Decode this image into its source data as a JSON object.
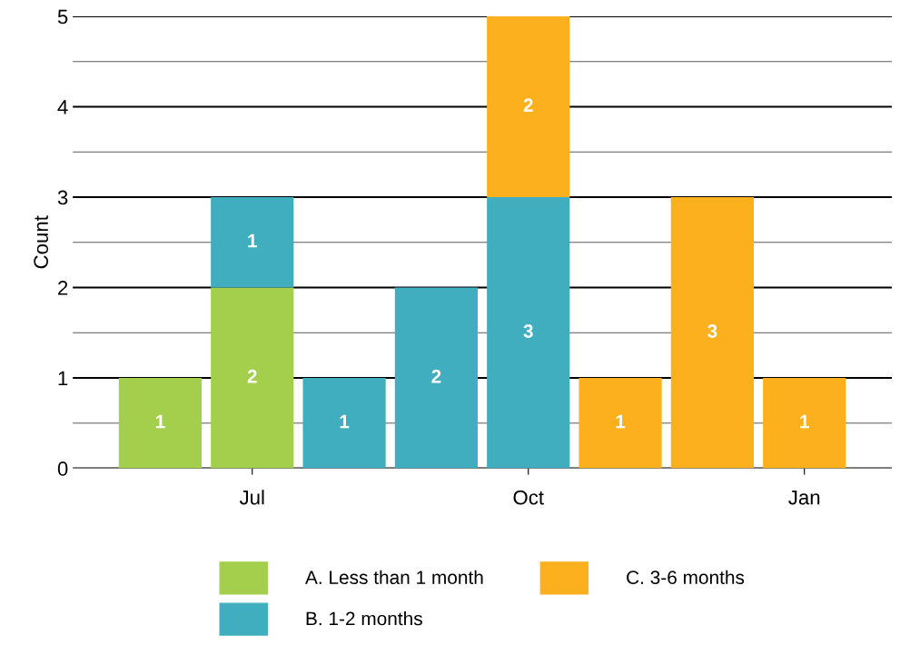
{
  "chart_data": {
    "type": "bar",
    "ylabel": "Count",
    "categories": [
      null,
      "Jul",
      null,
      null,
      "Oct",
      null,
      null,
      "Jan"
    ],
    "series": [
      {
        "name": "A. Less than 1 month",
        "color": "#a3cf4c",
        "values": [
          1,
          2,
          null,
          null,
          null,
          null,
          null,
          null
        ]
      },
      {
        "name": "B. 1-2 months",
        "color": "#40aebf",
        "values": [
          null,
          1,
          1,
          2,
          3,
          null,
          null,
          null
        ]
      },
      {
        "name": "C. 3-6 months",
        "color": "#fdb01e",
        "values": [
          null,
          null,
          null,
          null,
          2,
          1,
          3,
          1
        ]
      }
    ],
    "stacked": true,
    "data_labels": true,
    "ylim": [
      0,
      5
    ],
    "yticks": [
      0,
      {
        "value": 0.5,
        "label": null
      },
      1,
      {
        "value": 1.5,
        "label": null
      },
      2,
      {
        "value": 2.5,
        "label": null
      },
      3,
      {
        "value": 3.5,
        "label": null
      },
      4,
      {
        "value": 4.5,
        "label": null
      },
      5
    ],
    "grid": "y",
    "legend": "bottom"
  }
}
